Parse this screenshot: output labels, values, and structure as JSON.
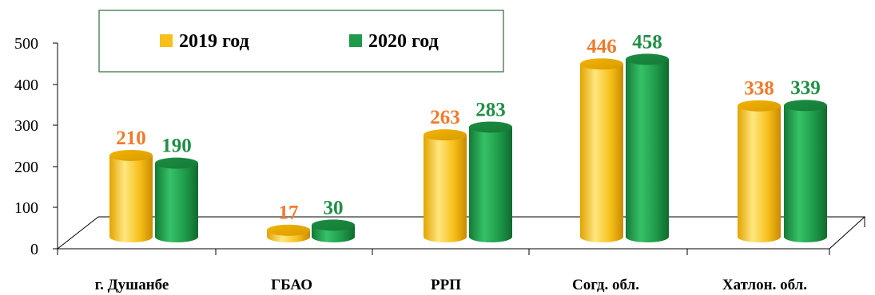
{
  "chart_data": {
    "type": "bar",
    "style": "3d-cylinder",
    "title": "",
    "xlabel": "",
    "ylabel": "",
    "ylim": [
      0,
      500
    ],
    "yticks": [
      0,
      100,
      200,
      300,
      400,
      500
    ],
    "grid": false,
    "legend_position": "top-left",
    "categories": [
      "г. Душанбе",
      "ГБАО",
      "РРП",
      "Согд. обл.",
      "Хатлон. обл."
    ],
    "series": [
      {
        "name": "2019 год",
        "color": "#f7c01a",
        "label_color": "#f07a2a",
        "values": [
          210,
          17,
          263,
          446,
          338
        ]
      },
      {
        "name": "2020 год",
        "color": "#1e9a4a",
        "label_color": "#1f8f45",
        "values": [
          190,
          30,
          283,
          458,
          339
        ]
      }
    ]
  }
}
